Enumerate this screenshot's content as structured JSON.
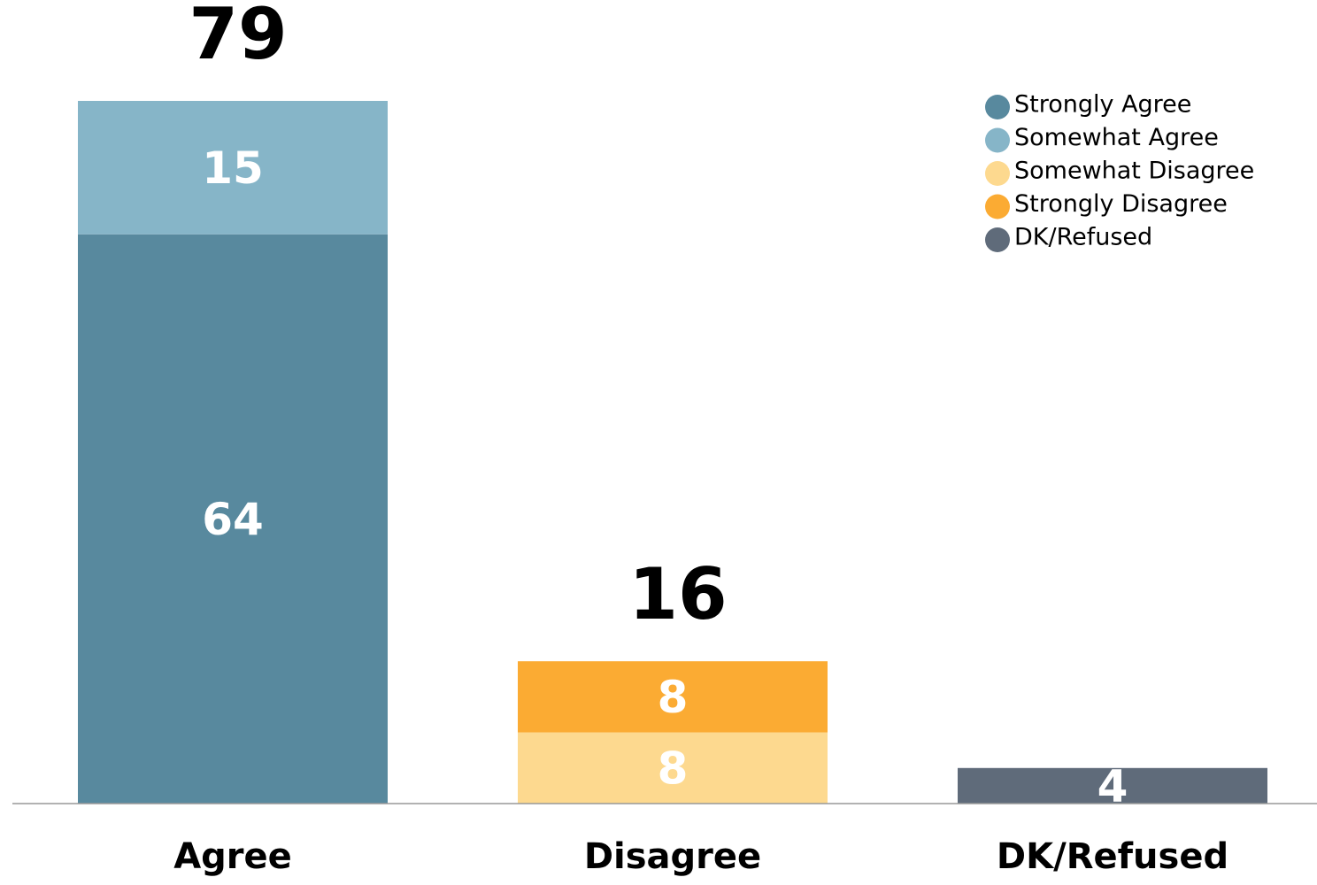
{
  "chart_data": {
    "type": "bar",
    "stacked": true,
    "categories": [
      "Agree",
      "Disagree",
      "DK/Refused"
    ],
    "series": [
      {
        "name": "Strongly Agree",
        "color": "#58899e",
        "values": [
          64,
          null,
          null
        ]
      },
      {
        "name": "Somewhat Agree",
        "color": "#86b5c8",
        "values": [
          15,
          null,
          null
        ]
      },
      {
        "name": "Somewhat Disagree",
        "color": "#fdd98f",
        "values": [
          null,
          8,
          null
        ]
      },
      {
        "name": "Strongly Disagree",
        "color": "#fbab33",
        "values": [
          null,
          8,
          null
        ]
      },
      {
        "name": "DK/Refused",
        "color": "#5f6b7a",
        "values": [
          null,
          null,
          4
        ]
      }
    ],
    "totals": [
      79,
      16,
      null
    ],
    "ylim": [
      0,
      79
    ],
    "legend": "top-right"
  }
}
